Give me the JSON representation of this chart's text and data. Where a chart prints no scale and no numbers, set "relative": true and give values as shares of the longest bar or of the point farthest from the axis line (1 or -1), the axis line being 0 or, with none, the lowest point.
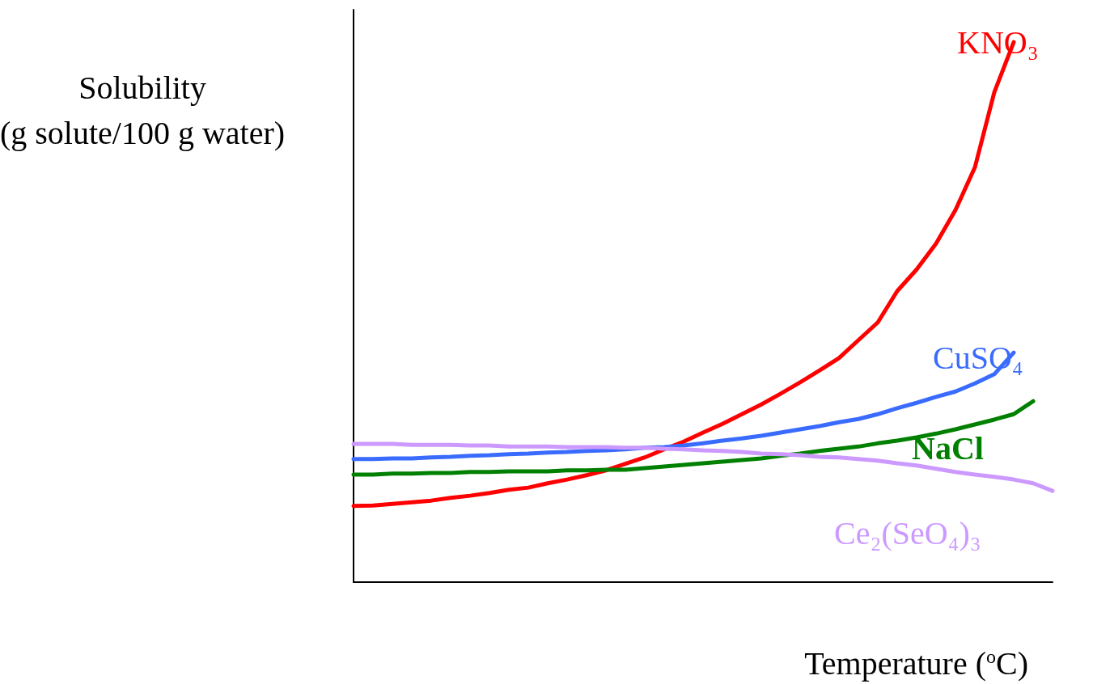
{
  "chart_data": {
    "type": "line",
    "relative": true,
    "ylabel": "Solubility\n(g solute/100 g water)",
    "xlabel": "Temperature ($^{o}$C)",
    "marker": "none",
    "line_style": "solid",
    "grid": false,
    "legend": false,
    "categories": [
      null,
      null,
      null,
      null,
      null,
      null,
      null,
      null,
      null,
      null,
      null,
      null,
      null,
      null,
      null,
      null,
      null,
      null,
      null,
      null,
      null,
      null,
      null,
      null,
      null,
      null,
      null,
      null,
      null,
      null,
      null,
      null,
      null,
      null,
      null,
      null,
      null
    ],
    "series": [
      {
        "name": "KNO₃",
        "color": "#ff0000",
        "values": [
          0.141,
          0.142,
          0.145,
          0.148,
          0.151,
          0.156,
          0.16,
          0.165,
          0.171,
          0.175,
          0.183,
          0.19,
          0.198,
          0.207,
          0.219,
          0.231,
          0.246,
          0.26,
          0.277,
          0.293,
          0.311,
          0.329,
          0.349,
          0.37,
          0.392,
          0.415,
          0.448,
          0.481,
          0.539,
          0.579,
          0.627,
          0.689,
          0.768,
          0.907,
          1,
          null,
          null
        ]
      },
      {
        "name": "CuSO₄",
        "color": "#3a6bff",
        "values": [
          0.228,
          0.228,
          0.229,
          0.229,
          0.231,
          0.232,
          0.234,
          0.235,
          0.237,
          0.238,
          0.24,
          0.241,
          0.243,
          0.244,
          0.246,
          0.249,
          0.25,
          0.253,
          0.257,
          0.262,
          0.266,
          0.271,
          0.277,
          0.283,
          0.289,
          0.296,
          0.302,
          0.311,
          0.322,
          0.332,
          0.343,
          0.353,
          0.368,
          0.385,
          0.425,
          null,
          null
        ]
      },
      {
        "name": "NaCl",
        "color": "#008000",
        "values": [
          0.199,
          0.199,
          0.201,
          0.201,
          0.202,
          0.202,
          0.204,
          0.204,
          0.205,
          0.205,
          0.205,
          0.207,
          0.207,
          0.208,
          0.208,
          0.211,
          0.214,
          0.217,
          0.22,
          0.223,
          0.226,
          0.229,
          0.234,
          0.238,
          0.243,
          0.247,
          0.251,
          0.257,
          0.262,
          0.268,
          0.275,
          0.283,
          0.292,
          0.301,
          0.311,
          0.335,
          null
        ]
      },
      {
        "name": "Ce₂(SeO₄)₃",
        "color": "#cc99ff",
        "values": [
          0.256,
          0.256,
          0.256,
          0.254,
          0.254,
          0.254,
          0.253,
          0.253,
          0.251,
          0.251,
          0.251,
          0.25,
          0.25,
          0.25,
          0.249,
          0.249,
          0.247,
          0.246,
          0.244,
          0.243,
          0.241,
          0.238,
          0.237,
          0.235,
          0.232,
          0.231,
          0.228,
          0.225,
          0.22,
          0.216,
          0.21,
          0.204,
          0.199,
          0.195,
          0.19,
          0.183,
          0.169
        ]
      }
    ]
  }
}
